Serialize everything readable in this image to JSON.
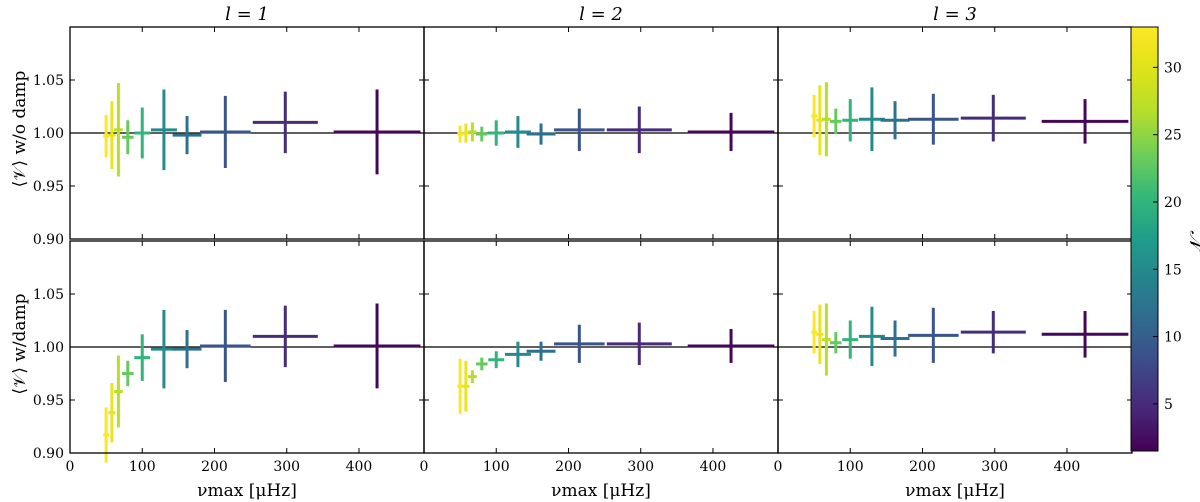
{
  "chart_data": {
    "type": "scatter",
    "description_rows": [
      "w/o damp",
      "w/damp"
    ],
    "column_titles": [
      "l = 1",
      "l = 2",
      "l = 3"
    ],
    "ylabel_top": "⟨𝒱⟩  w/o damp",
    "ylabel_bottom": "⟨𝒱⟩  w/damp",
    "xlabel": "νmax [μHz]",
    "xlim": [
      0,
      490
    ],
    "ylim": [
      0.9,
      1.1
    ],
    "xticks": [
      0,
      100,
      200,
      300,
      400
    ],
    "yticks": [
      0.9,
      0.95,
      1.0,
      1.05
    ],
    "ytick_labels": [
      "0.90",
      "0.95",
      "1.00",
      "1.05"
    ],
    "reference_line": 1.0,
    "colorbar": {
      "label": "𝒩",
      "range": [
        1.5,
        33
      ],
      "ticks": [
        5,
        10,
        15,
        20,
        25,
        30
      ],
      "colormap": "viridis"
    },
    "bins": [
      {
        "x": 50,
        "xerr": 4,
        "N": 33
      },
      {
        "x": 58,
        "xerr": 5,
        "N": 31
      },
      {
        "x": 67,
        "xerr": 6,
        "N": 27
      },
      {
        "x": 80,
        "xerr": 8,
        "N": 23
      },
      {
        "x": 100,
        "xerr": 11,
        "N": 20
      },
      {
        "x": 130,
        "xerr": 18,
        "N": 15
      },
      {
        "x": 162,
        "xerr": 20,
        "N": 12
      },
      {
        "x": 215,
        "xerr": 35,
        "N": 9
      },
      {
        "x": 298,
        "xerr": 45,
        "N": 5
      },
      {
        "x": 425,
        "xerr": 60,
        "N": 2
      }
    ],
    "panels": [
      {
        "row": 0,
        "col": 0,
        "title": "l = 1",
        "y": [
          0.997,
          0.998,
          1.003,
          0.996,
          1.0,
          1.003,
          0.998,
          1.001,
          1.01,
          1.001
        ],
        "yerr": [
          0.02,
          0.032,
          0.044,
          0.016,
          0.024,
          0.038,
          0.018,
          0.034,
          0.029,
          0.04
        ]
      },
      {
        "row": 0,
        "col": 1,
        "title": "l = 2",
        "y": [
          0.999,
          1.0,
          1.001,
          0.999,
          1.0,
          1.001,
          0.999,
          1.003,
          1.003,
          1.001
        ],
        "yerr": [
          0.008,
          0.009,
          0.009,
          0.007,
          0.012,
          0.015,
          0.01,
          0.02,
          0.022,
          0.018
        ]
      },
      {
        "row": 0,
        "col": 2,
        "title": "l = 3",
        "y": [
          1.016,
          1.012,
          1.013,
          1.011,
          1.012,
          1.013,
          1.012,
          1.013,
          1.014,
          1.011
        ],
        "yerr": [
          0.02,
          0.033,
          0.035,
          0.012,
          0.02,
          0.03,
          0.018,
          0.024,
          0.022,
          0.021
        ]
      },
      {
        "row": 1,
        "col": 0,
        "title": "l = 1",
        "y": [
          0.917,
          0.938,
          0.958,
          0.975,
          0.99,
          0.998,
          0.998,
          1.001,
          1.01,
          1.001
        ],
        "yerr": [
          0.026,
          0.028,
          0.034,
          0.012,
          0.022,
          0.037,
          0.018,
          0.034,
          0.029,
          0.04
        ]
      },
      {
        "row": 1,
        "col": 1,
        "title": "l = 2",
        "y": [
          0.963,
          0.963,
          0.972,
          0.984,
          0.988,
          0.993,
          0.996,
          1.003,
          1.003,
          1.001
        ],
        "yerr": [
          0.026,
          0.024,
          0.006,
          0.006,
          0.008,
          0.012,
          0.009,
          0.018,
          0.02,
          0.016
        ]
      },
      {
        "row": 1,
        "col": 2,
        "title": "l = 3",
        "y": [
          1.014,
          1.012,
          1.007,
          1.004,
          1.007,
          1.01,
          1.008,
          1.011,
          1.014,
          1.012
        ],
        "yerr": [
          0.02,
          0.028,
          0.034,
          0.01,
          0.018,
          0.028,
          0.017,
          0.026,
          0.02,
          0.022
        ]
      }
    ]
  }
}
